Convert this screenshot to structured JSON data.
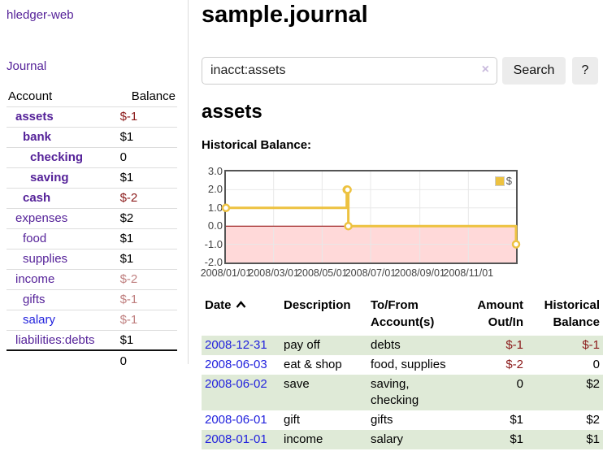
{
  "app": {
    "title": "hledger-web"
  },
  "sidebar": {
    "nav_journal": "Journal",
    "accounts_table": {
      "headers": {
        "account": "Account",
        "balance": "Balance"
      },
      "rows": [
        {
          "name": "assets",
          "balance": "$-1",
          "level": 1,
          "in_query": true,
          "neg": "strong",
          "link": "purple"
        },
        {
          "name": "bank",
          "balance": "$1",
          "level": 2,
          "in_query": true,
          "neg": "none",
          "link": "purple"
        },
        {
          "name": "checking",
          "balance": "0",
          "level": 3,
          "in_query": true,
          "neg": "none",
          "link": "purple"
        },
        {
          "name": "saving",
          "balance": "$1",
          "level": 3,
          "in_query": true,
          "neg": "none",
          "link": "purple"
        },
        {
          "name": "cash",
          "balance": "$-2",
          "level": 2,
          "in_query": true,
          "neg": "strong",
          "link": "purple"
        },
        {
          "name": "expenses",
          "balance": "$2",
          "level": 1,
          "in_query": false,
          "neg": "none",
          "link": "purple"
        },
        {
          "name": "food",
          "balance": "$1",
          "level": 2,
          "in_query": false,
          "neg": "none",
          "link": "purple"
        },
        {
          "name": "supplies",
          "balance": "$1",
          "level": 2,
          "in_query": false,
          "neg": "none",
          "link": "purple"
        },
        {
          "name": "income",
          "balance": "$-2",
          "level": 1,
          "in_query": false,
          "neg": "soft",
          "link": "purple"
        },
        {
          "name": "gifts",
          "balance": "$-1",
          "level": 2,
          "in_query": false,
          "neg": "soft",
          "link": "purple"
        },
        {
          "name": "salary",
          "balance": "$-1",
          "level": 2,
          "in_query": false,
          "neg": "soft",
          "link": "blue"
        },
        {
          "name": "liabilities:debts",
          "balance": "$1",
          "level": 1,
          "in_query": false,
          "neg": "none",
          "link": "purple"
        }
      ],
      "total": "0"
    }
  },
  "main": {
    "title": "sample.journal",
    "search": {
      "value": "inacct:assets",
      "clear_icon": "×",
      "search_button": "Search",
      "help_button": "?"
    },
    "account_heading": "assets",
    "chart_title": "Historical Balance:"
  },
  "chart_data": {
    "type": "line",
    "title": "Historical Balance",
    "x_start": "2008-01-01",
    "x_end": "2008-12-31",
    "ylim": [
      -2,
      3
    ],
    "y_ticks": [
      "3.0",
      "2.0",
      "1.0",
      "0.0",
      "-1.0",
      "-2.0"
    ],
    "x_ticks": [
      "2008/01/01",
      "2008/03/01",
      "2008/05/01",
      "2008/07/01",
      "2008/09/01",
      "2008/11/01"
    ],
    "series": [
      {
        "name": "$",
        "color": "#edc240",
        "step": true,
        "points": [
          [
            "2008-01-01",
            1
          ],
          [
            "2008-06-01",
            2
          ],
          [
            "2008-06-02",
            2
          ],
          [
            "2008-06-03",
            0
          ],
          [
            "2008-12-31",
            -1
          ]
        ]
      }
    ],
    "legend_position": "top-right",
    "grid": true,
    "negative_region_color": "#ffd9d9",
    "zero_line_color": "#8b0000",
    "gridline_color": "#e8e8e8"
  },
  "register": {
    "headers": {
      "date": "Date",
      "description": "Description",
      "account": "To/From Account(s)",
      "amount": "Amount Out/In",
      "balance": "Historical Balance"
    },
    "rows": [
      {
        "date": "2008-12-31",
        "description": "pay off",
        "accounts": "debts",
        "amount": "$-1",
        "balance": "$-1",
        "amount_neg": true,
        "balance_neg": true,
        "shaded": true
      },
      {
        "date": "2008-06-03",
        "description": "eat & shop",
        "accounts": "food, supplies",
        "amount": "$-2",
        "balance": "0",
        "amount_neg": true,
        "balance_neg": false,
        "shaded": false
      },
      {
        "date": "2008-06-02",
        "description": "save",
        "accounts": "saving, checking",
        "amount": "0",
        "balance": "$2",
        "amount_neg": false,
        "balance_neg": false,
        "shaded": true
      },
      {
        "date": "2008-06-01",
        "description": "gift",
        "accounts": "gifts",
        "amount": "$1",
        "balance": "$2",
        "amount_neg": false,
        "balance_neg": false,
        "shaded": false
      },
      {
        "date": "2008-01-01",
        "description": "income",
        "accounts": "salary",
        "amount": "$1",
        "balance": "$1",
        "amount_neg": false,
        "balance_neg": false,
        "shaded": true
      }
    ]
  }
}
